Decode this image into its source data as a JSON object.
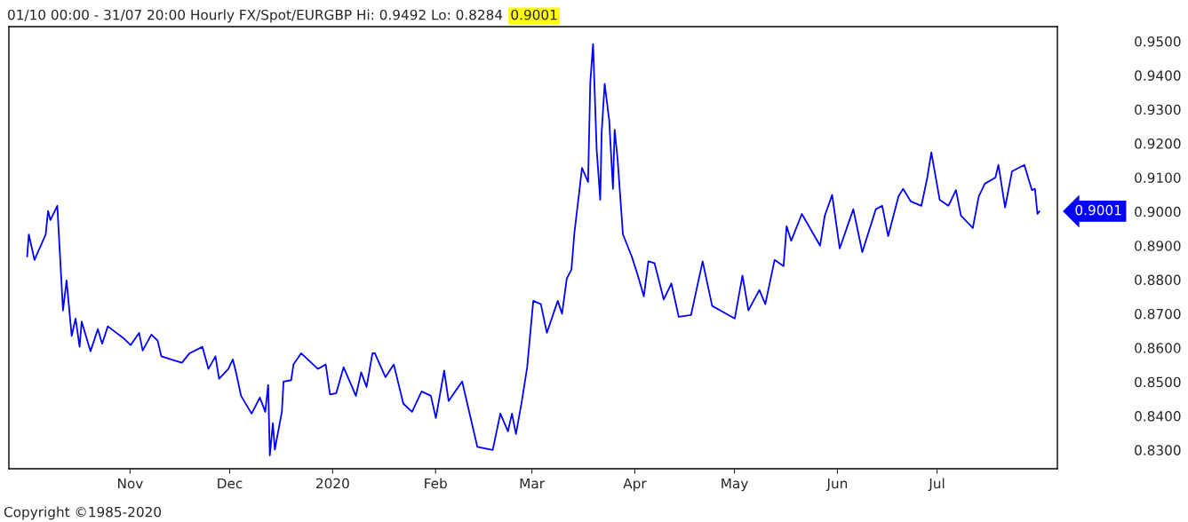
{
  "chart_data": {
    "type": "line",
    "title": "01/10 00:00 - 31/07 20:00 Hourly FX/Spot/EURGBP Hi: 0.9492 Lo: 0.8284",
    "subtitle": "0.9001",
    "annotations": [
      "0.9001",
      "Copyright ©1985-2020"
    ],
    "x": [
      "2019-10-01T00:00",
      "2019-10-01T12:00",
      "2019-10-03T05:00",
      "2019-10-06T14:00",
      "2019-10-07T07:00",
      "2019-10-08T00:00",
      "2019-10-10T02:00",
      "2019-10-11T19:00",
      "2019-10-12T21:00",
      "2019-10-14T10:00",
      "2019-10-15T14:00",
      "2019-10-16T19:00",
      "2019-10-17T10:00",
      "2019-10-20T02:00",
      "2019-10-22T07:00",
      "2019-10-23T14:00",
      "2019-10-25T07:00",
      "2019-10-30T07:00",
      "2019-11-01T04:00",
      "2019-11-03T17:00",
      "2019-11-04T19:00",
      "2019-11-07T10:00",
      "2019-11-09T07:00",
      "2019-11-10T10:00",
      "2019-11-16T14:00",
      "2019-11-18T22:00",
      "2019-11-22T19:00",
      "2019-11-24T14:00",
      "2019-11-26T17:00",
      "2019-11-27T19:00",
      "2019-11-30T14:00",
      "2019-12-01T22:00",
      "2019-12-03T00:00",
      "2019-12-04T10:00",
      "2019-12-07T14:00",
      "2019-12-10T02:00",
      "2019-12-11T17:00",
      "2019-12-12T14:00",
      "2019-12-13T02:00",
      "2019-12-14T00:00",
      "2019-12-14T14:00",
      "2019-12-16T17:00",
      "2019-12-17T05:00",
      "2019-12-19T12:00",
      "2019-12-20T05:00",
      "2019-12-22T12:00",
      "2019-12-27T14:00",
      "2019-12-29T22:00",
      "2019-12-31T05:00",
      "2020-01-02T02:00",
      "2020-01-04T07:00",
      "2020-01-08T00:00",
      "2020-01-09T14:00",
      "2020-01-11T05:00",
      "2020-01-13T00:00",
      "2020-01-13T17:00",
      "2020-01-16T22:00",
      "2020-01-19T10:00",
      "2020-01-22T07:00",
      "2020-01-24T22:00",
      "2020-01-27T19:00",
      "2020-01-30T14:00",
      "2020-02-01T02:00",
      "2020-02-03T14:00",
      "2020-02-04T22:00",
      "2020-02-09T00:00",
      "2020-02-13T14:00",
      "2020-02-18T05:00",
      "2020-02-20T12:00",
      "2020-02-22T19:00",
      "2020-02-24T00:00",
      "2020-02-25T05:00",
      "2020-02-26T22:00",
      "2020-02-28T14:00",
      "2020-03-01T10:00",
      "2020-03-03T17:00",
      "2020-03-05T12:00",
      "2020-03-08T19:00",
      "2020-03-10T02:00",
      "2020-03-11T12:00",
      "2020-03-12T22:00",
      "2020-03-13T19:00",
      "2020-03-15T05:00",
      "2020-03-16T02:00",
      "2020-03-17T22:00",
      "2020-03-18T14:00",
      "2020-03-19T10:00",
      "2020-03-20T12:00",
      "2020-03-21T14:00",
      "2020-03-22T00:00",
      "2020-03-22T22:00",
      "2020-03-24T07:00",
      "2020-03-25T10:00",
      "2020-03-25T22:00",
      "2020-03-26T19:00",
      "2020-03-28T10:00",
      "2020-03-31T02:00",
      "2020-04-01T22:00",
      "2020-04-03T17:00",
      "2020-04-05T02:00",
      "2020-04-06T22:00",
      "2020-04-09T17:00",
      "2020-04-12T00:00",
      "2020-04-14T05:00",
      "2020-04-17T22:00",
      "2020-04-21T10:00",
      "2020-04-24T07:00",
      "2020-05-01T02:00",
      "2020-05-03T10:00",
      "2020-05-05T05:00",
      "2020-05-08T12:00",
      "2020-05-10T07:00",
      "2020-05-13T02:00",
      "2020-05-15T19:00",
      "2020-05-16T17:00",
      "2020-05-18T02:00",
      "2020-05-21T07:00",
      "2020-05-26T19:00",
      "2020-05-28T05:00",
      "2020-05-30T10:00",
      "2020-06-01T17:00",
      "2020-06-05T19:00",
      "2020-06-08T12:00",
      "2020-06-12T14:00",
      "2020-06-14T12:00",
      "2020-06-16T07:00",
      "2020-06-19T10:00",
      "2020-06-20T19:00",
      "2020-06-23T02:00",
      "2020-06-26T07:00",
      "2020-06-28T02:00",
      "2020-06-29T07:00",
      "2020-07-01T19:00",
      "2020-07-04T10:00",
      "2020-07-06T17:00",
      "2020-07-08T05:00",
      "2020-07-11T19:00",
      "2020-07-13T14:00",
      "2020-07-15T10:00",
      "2020-07-18T14:00",
      "2020-07-19T12:00",
      "2020-07-21T12:00",
      "2020-07-23T14:00",
      "2020-07-27T07:00",
      "2020-07-29T14:00",
      "2020-07-30T12:00",
      "2020-07-31T06:00",
      "2020-07-31T20:00"
    ],
    "series": [
      {
        "color": "#0000ff",
        "values": [
          0.8868,
          0.8933,
          0.8858,
          0.8933,
          0.9002,
          0.8975,
          0.9017,
          0.871,
          0.8798,
          0.8635,
          0.8686,
          0.8603,
          0.8677,
          0.859,
          0.8655,
          0.8612,
          0.8663,
          0.8626,
          0.8608,
          0.8644,
          0.8592,
          0.8639,
          0.8621,
          0.8575,
          0.8556,
          0.8584,
          0.8603,
          0.8538,
          0.8575,
          0.8509,
          0.8538,
          0.8566,
          0.8524,
          0.8459,
          0.8407,
          0.8454,
          0.8412,
          0.8491,
          0.8284,
          0.8379,
          0.8301,
          0.8412,
          0.8501,
          0.8505,
          0.8551,
          0.8584,
          0.8538,
          0.8551,
          0.8463,
          0.8467,
          0.8543,
          0.8459,
          0.8528,
          0.8485,
          0.8584,
          0.8584,
          0.8514,
          0.8551,
          0.8436,
          0.8412,
          0.8472,
          0.8459,
          0.8394,
          0.8533,
          0.8444,
          0.8501,
          0.8309,
          0.83,
          0.8407,
          0.8355,
          0.8407,
          0.8347,
          0.844,
          0.8543,
          0.8738,
          0.8728,
          0.8644,
          0.8738,
          0.87,
          0.8803,
          0.883,
          0.8937,
          0.9053,
          0.9128,
          0.9087,
          0.9379,
          0.9492,
          0.9183,
          0.9035,
          0.923,
          0.9375,
          0.9267,
          0.9067,
          0.924,
          0.9156,
          0.8933,
          0.8868,
          0.8812,
          0.8751,
          0.8854,
          0.8849,
          0.8742,
          0.8789,
          0.8691,
          0.8696,
          0.8854,
          0.8723,
          0.8686,
          0.8812,
          0.871,
          0.877,
          0.8728,
          0.8858,
          0.884,
          0.8957,
          0.8914,
          0.8993,
          0.89,
          0.8988,
          0.9049,
          0.8892,
          0.9007,
          0.8881,
          0.9007,
          0.9017,
          0.8928,
          0.9045,
          0.9067,
          0.903,
          0.9017,
          0.91,
          0.9174,
          0.9035,
          0.9017,
          0.9063,
          0.8988,
          0.8952,
          0.9045,
          0.9082,
          0.91,
          0.9137,
          0.9012,
          0.9118,
          0.9137,
          0.9063,
          0.9067,
          0.8993,
          0.9001
        ]
      }
    ],
    "xlim": [
      "2019-09-25T12:00",
      "2020-08-06T06:00"
    ],
    "xticks": [
      {
        "value": "2019-11-01",
        "label": "Nov"
      },
      {
        "value": "2019-12-01",
        "label": "Dec"
      },
      {
        "value": "2020-01-01",
        "label": "2020"
      },
      {
        "value": "2020-02-01",
        "label": "Feb"
      },
      {
        "value": "2020-03-01",
        "label": "Mar"
      },
      {
        "value": "2020-04-01",
        "label": "Apr"
      },
      {
        "value": "2020-05-01",
        "label": "May"
      },
      {
        "value": "2020-06-01",
        "label": "Jun"
      },
      {
        "value": "2020-07-01",
        "label": "Jul"
      }
    ],
    "ylim": [
      0.8245,
      0.9543
    ],
    "yticks": [
      {
        "value": 0.83,
        "label": "0.8300"
      },
      {
        "value": 0.84,
        "label": "0.8400"
      },
      {
        "value": 0.85,
        "label": "0.8500"
      },
      {
        "value": 0.86,
        "label": "0.8600"
      },
      {
        "value": 0.87,
        "label": "0.8700"
      },
      {
        "value": 0.88,
        "label": "0.8800"
      },
      {
        "value": 0.89,
        "label": "0.8900"
      },
      {
        "value": 0.9,
        "label": "0.9000"
      },
      {
        "value": 0.91,
        "label": "0.9100"
      },
      {
        "value": 0.92,
        "label": "0.9200"
      },
      {
        "value": 0.93,
        "label": "0.9300"
      },
      {
        "value": 0.94,
        "label": "0.9400"
      },
      {
        "value": 0.95,
        "label": "0.9500"
      }
    ],
    "grid": false,
    "legend": false,
    "marker": "none",
    "line_style": "solid"
  }
}
